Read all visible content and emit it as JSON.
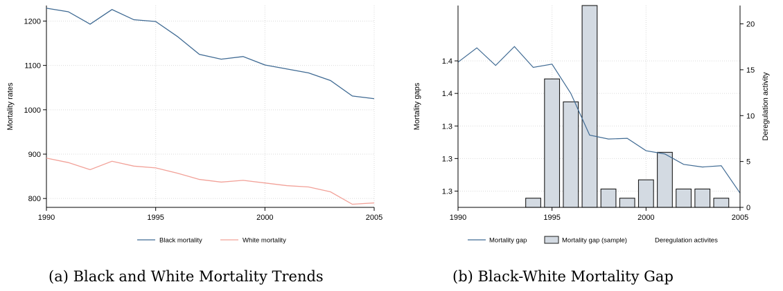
{
  "captions": {
    "a": "(a) Black and White Mortality Trends",
    "b": "(b) Black-White Mortality Gap"
  },
  "colors": {
    "black_line": "#3f6a93",
    "white_line": "#f2a198",
    "bar_fill": "#d3dae2",
    "bar_edge": "#1a1a1a"
  },
  "chart_data": [
    {
      "type": "line",
      "title": "",
      "xlabel": "",
      "ylabel": "Mortality rates",
      "xlim": [
        1990,
        2005
      ],
      "ylim": [
        780,
        1235
      ],
      "xticks": [
        "1990",
        "1995",
        "2000",
        "2005"
      ],
      "yticks": [
        "800",
        "900",
        "1000",
        "1100",
        "1200"
      ],
      "x": [
        1990,
        1991,
        1992,
        1993,
        1994,
        1995,
        1996,
        1997,
        1998,
        1999,
        2000,
        2001,
        2002,
        2003,
        2004,
        2005
      ],
      "series": [
        {
          "name": "Black mortality",
          "values": [
            1229,
            1221,
            1193,
            1226,
            1203,
            1199,
            1165,
            1125,
            1114,
            1120,
            1101,
            1092,
            1083,
            1066,
            1031,
            1025
          ]
        },
        {
          "name": "White mortality",
          "values": [
            891,
            881,
            865,
            884,
            873,
            869,
            857,
            843,
            837,
            841,
            835,
            829,
            826,
            815,
            787,
            790
          ]
        }
      ],
      "grid": true,
      "legend": "bottom"
    },
    {
      "type": "bar",
      "title": "",
      "xlabel": "",
      "ylabel": "Mortality gaps",
      "y2label": "Deregulation activity",
      "xlim": [
        1990,
        2005
      ],
      "ylim": [
        1.2875,
        1.4425
      ],
      "y2lim": [
        0,
        22
      ],
      "xticks": [
        "1990",
        "1995",
        "2000",
        "2005"
      ],
      "yticks": [
        "1.3",
        "1.3",
        "1.3",
        "1.4",
        "1.4"
      ],
      "yticks_pos": [
        1.3,
        1.325,
        1.35,
        1.375,
        1.4
      ],
      "y2ticks": [
        "0",
        "5",
        "10",
        "15",
        "20"
      ],
      "line": {
        "name": "Mortality gap",
        "x": [
          1990,
          1991,
          1992,
          1993,
          1994,
          1995,
          1996,
          1997,
          1998,
          1999,
          2000,
          2001,
          2002,
          2003,
          2004,
          2005
        ],
        "values": [
          1.399,
          1.41,
          1.3965,
          1.411,
          1.395,
          1.3975,
          1.375,
          1.343,
          1.34,
          1.3405,
          1.331,
          1.3285,
          1.3205,
          1.3185,
          1.3195,
          1.2985
        ]
      },
      "bars": {
        "name": "Mortality gap (sample)",
        "x": [
          1994,
          1995,
          1996,
          1997,
          1998,
          1999,
          2000,
          2001,
          2002,
          2003,
          2004
        ],
        "values": [
          1,
          14,
          11.5,
          22,
          2,
          1,
          3,
          6,
          2,
          2,
          1
        ]
      },
      "legend_items": [
        "Mortality gap",
        "Mortality gap (sample)",
        "Deregulation activites"
      ],
      "grid": true,
      "legend": "bottom"
    }
  ]
}
